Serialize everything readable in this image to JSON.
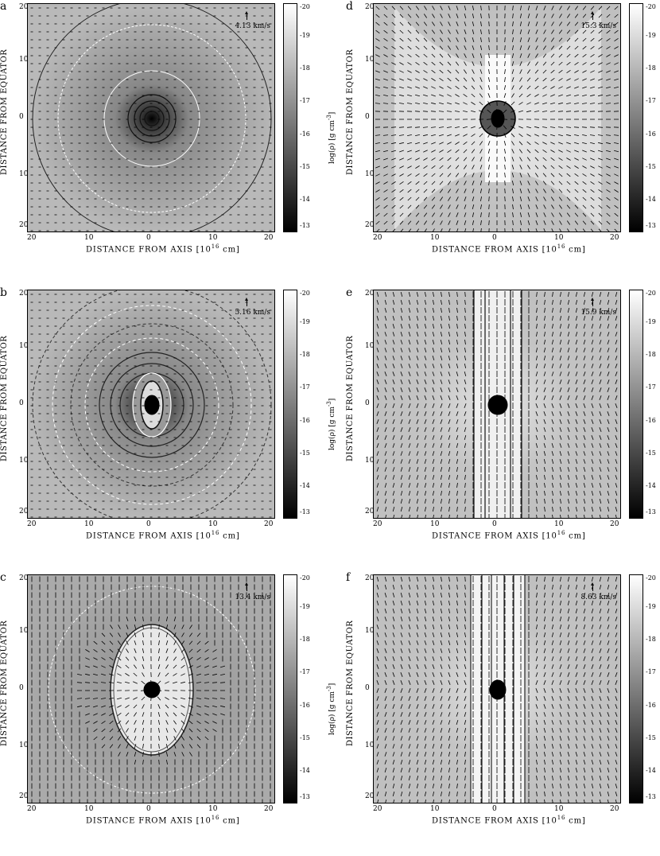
{
  "figure": {
    "x_axis_label": "DISTANCE FROM AXIS",
    "x_axis_unit": "[10",
    "x_axis_unit_exp": "16",
    "x_axis_unit_suffix": " cm]",
    "y_axis_label": "DISTANCE FROM EQUATOR",
    "x_ticks": [
      "20",
      "10",
      "0",
      "10",
      "20"
    ],
    "y_ticks": [
      "20",
      "10",
      "0",
      "10",
      "20"
    ],
    "colorbar_ticks": [
      "-20",
      "-19",
      "-18",
      "-17",
      "-16",
      "-15",
      "-14",
      "-13"
    ],
    "colorbar_label": "log(ρ)  [g cm",
    "colorbar_label_exp": "-3",
    "colorbar_label_suffix": "]",
    "colorbar_range": [
      -20,
      -13
    ],
    "colors": {
      "frame": "#000000",
      "contour_light": "#ffffff",
      "contour_dark": "#111111"
    }
  },
  "panels": [
    {
      "letter": "a",
      "velocity": "4.13 km/s",
      "style": "spherical"
    },
    {
      "letter": "b",
      "velocity": "5.16 km/s",
      "style": "spherical-rings"
    },
    {
      "letter": "c",
      "velocity": "13.4 km/s",
      "style": "bubble"
    },
    {
      "letter": "d",
      "velocity": "15.3 km/s",
      "style": "hourglass"
    },
    {
      "letter": "e",
      "velocity": "15.9 km/s",
      "style": "jet"
    },
    {
      "letter": "f",
      "velocity": "8.63 km/s",
      "style": "jet-wide"
    }
  ]
}
